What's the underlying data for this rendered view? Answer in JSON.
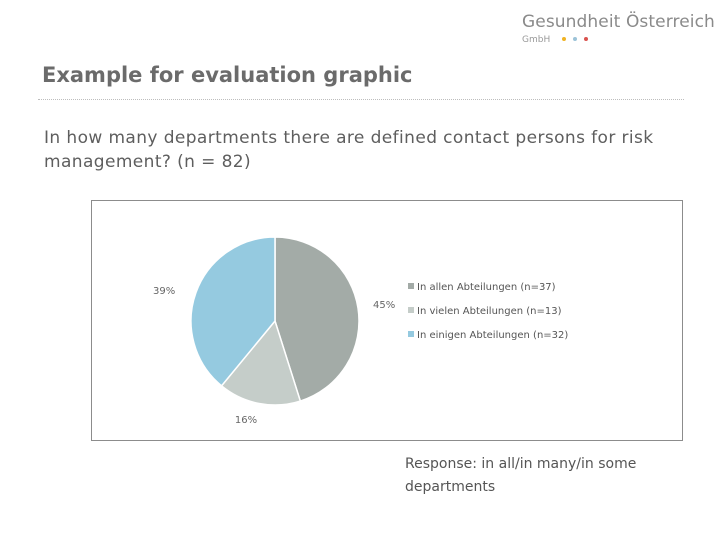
{
  "logo": {
    "name": "Gesundheit Österreich",
    "subtitle": "GmbH",
    "dot_colors": [
      "#f0b323",
      "#9cc3d8",
      "#d9534f"
    ]
  },
  "slide": {
    "title": "Example for evaluation graphic",
    "question": "In how many departments there are defined contact persons for risk management? (n = 82)",
    "caption": "Response: in all/in many/in some departments"
  },
  "chart_data": {
    "type": "pie",
    "title": "",
    "start_angle_deg": 0,
    "direction": "clockwise",
    "legend_position": "right",
    "slices": [
      {
        "legend": "In allen Abteilungen (n=37)",
        "value": 37,
        "label": "45%",
        "color": "#a3aba7"
      },
      {
        "legend": "In vielen Abteilungen (n=13)",
        "value": 13,
        "label": "16%",
        "color": "#c5cdc9"
      },
      {
        "legend": "In einigen Abteilungen (n=32)",
        "value": 32,
        "label": "39%",
        "color": "#95cae0"
      }
    ]
  }
}
